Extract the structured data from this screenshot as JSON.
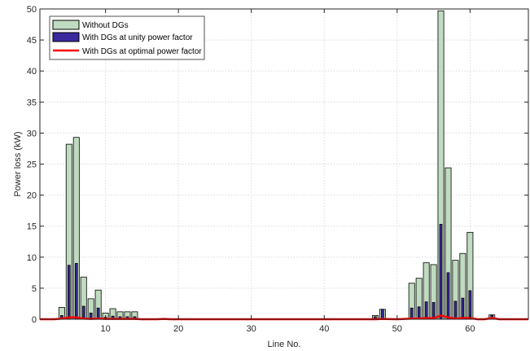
{
  "chart_data": {
    "type": "bar",
    "title": "",
    "xlabel": "Line No.",
    "ylabel": "Power loss (kW)",
    "xlim": [
      1,
      68
    ],
    "ylim": [
      0,
      50
    ],
    "xticks": [
      10,
      20,
      30,
      40,
      50,
      60
    ],
    "yticks": [
      0,
      5,
      10,
      15,
      20,
      25,
      30,
      35,
      40,
      45,
      50
    ],
    "grid": true,
    "legend_position": "top-left",
    "series": [
      {
        "name": "Without DGs",
        "kind": "bar",
        "color": "#c0dcc0",
        "x": [
          3,
          4,
          5,
          6,
          7,
          8,
          9,
          10,
          11,
          12,
          13,
          14,
          47,
          48,
          52,
          53,
          54,
          55,
          56,
          57,
          58,
          59,
          60,
          63
        ],
        "values": [
          0.1,
          1.9,
          28.2,
          29.3,
          6.8,
          3.3,
          4.7,
          1.0,
          1.7,
          1.2,
          1.2,
          1.2,
          0.6,
          1.6,
          5.8,
          6.6,
          9.1,
          8.8,
          49.7,
          24.4,
          9.5,
          10.6,
          14.0,
          0.7
        ]
      },
      {
        "name": "With DGs at unity power factor",
        "kind": "bar",
        "color": "#3a2a9e",
        "x": [
          3,
          4,
          5,
          6,
          7,
          8,
          9,
          10,
          11,
          12,
          13,
          14,
          47,
          48,
          52,
          53,
          54,
          55,
          56,
          57,
          58,
          59,
          60,
          63
        ],
        "values": [
          0.05,
          0.6,
          8.7,
          9.0,
          2.1,
          1.0,
          1.8,
          0.3,
          0.5,
          0.4,
          0.4,
          0.4,
          0.4,
          1.6,
          1.8,
          2.0,
          2.8,
          2.7,
          15.3,
          7.5,
          2.9,
          3.4,
          4.6,
          0.6
        ]
      },
      {
        "name": "With DGs at optimal power factor",
        "kind": "line",
        "color": "#ff0000",
        "x": [
          1,
          3,
          4,
          5,
          6,
          7,
          8,
          9,
          10,
          11,
          12,
          13,
          14,
          15,
          16,
          17,
          18,
          19,
          20,
          30,
          40,
          47,
          48,
          50,
          52,
          53,
          54,
          55,
          56,
          57,
          58,
          59,
          60,
          61,
          62,
          63,
          64,
          68
        ],
        "values": [
          0,
          0,
          0.1,
          0.3,
          0.3,
          0.1,
          0.05,
          0.1,
          0.05,
          0.05,
          0.05,
          0.05,
          0.05,
          0,
          0,
          0,
          0.05,
          0,
          0,
          0,
          0,
          0,
          0.05,
          0,
          0.1,
          0.1,
          0.2,
          0.15,
          0.6,
          0.3,
          0.1,
          0.2,
          0.2,
          0,
          0,
          0.2,
          0,
          0
        ]
      }
    ]
  }
}
